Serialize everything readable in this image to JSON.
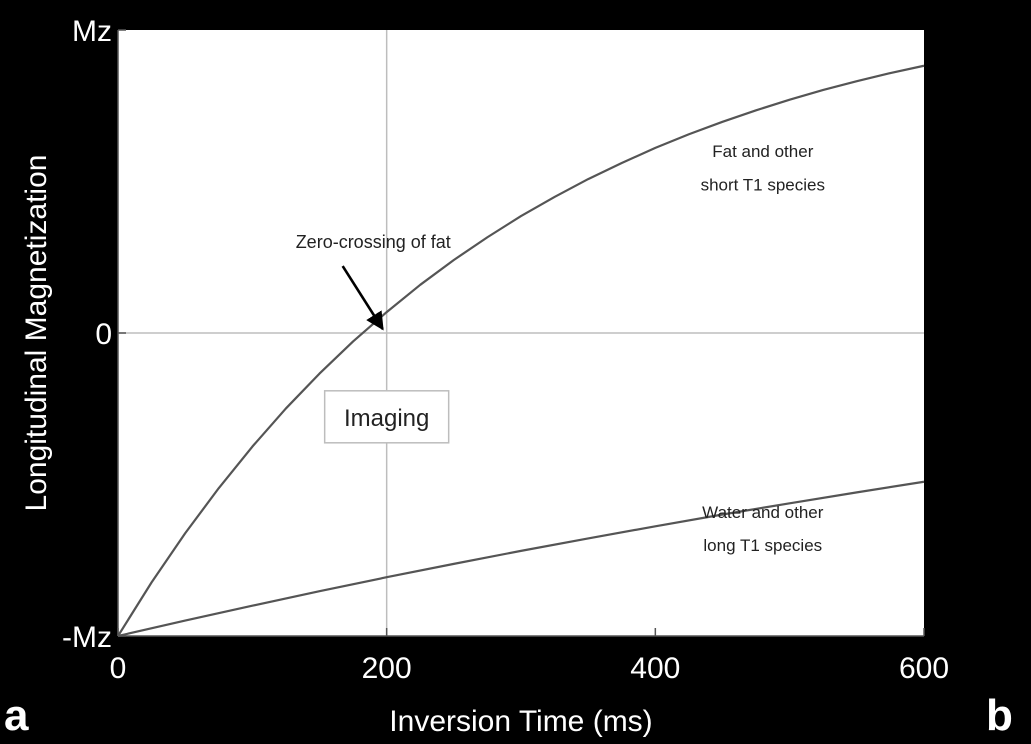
{
  "chart_data": {
    "type": "line",
    "title": "",
    "xlabel": "Inversion Time (ms)",
    "ylabel": "Longitudinal Magnetization",
    "xlim": [
      0,
      600
    ],
    "ylim": [
      -1,
      1
    ],
    "x_ticks": [
      0,
      200,
      400,
      600
    ],
    "x_tick_labels": [
      "0",
      "200",
      "400",
      "600"
    ],
    "y_ticks": [
      -1,
      0,
      1
    ],
    "y_tick_labels": [
      "-Mz",
      "0",
      "Mz"
    ],
    "grid": false,
    "reference_lines": [
      {
        "axis": "x",
        "value": 200
      },
      {
        "axis": "y",
        "value": 0
      }
    ],
    "series": [
      {
        "name": "Fat and other short T1 species",
        "x": [
          0,
          25,
          50,
          75,
          100,
          125,
          150,
          175,
          200,
          225,
          250,
          275,
          300,
          325,
          350,
          375,
          400,
          425,
          450,
          475,
          500,
          525,
          550,
          575,
          600
        ],
        "y": [
          -1.0,
          -0.823,
          -0.661,
          -0.512,
          -0.375,
          -0.249,
          -0.134,
          -0.028,
          0.069,
          0.159,
          0.241,
          0.316,
          0.386,
          0.449,
          0.508,
          0.561,
          0.611,
          0.656,
          0.697,
          0.735,
          0.77,
          0.802,
          0.831,
          0.858,
          0.882
        ]
      },
      {
        "name": "Water and other long T1 species",
        "x": [
          0,
          50,
          100,
          150,
          200,
          250,
          300,
          350,
          400,
          450,
          500,
          550,
          600
        ],
        "y": [
          -1.0,
          -0.949,
          -0.9,
          -0.852,
          -0.806,
          -0.762,
          -0.719,
          -0.678,
          -0.638,
          -0.599,
          -0.562,
          -0.526,
          -0.491
        ]
      }
    ],
    "annotations": [
      {
        "text": "Fat and other",
        "x": 480,
        "y": 0.6
      },
      {
        "text": "short T1 species",
        "x": 480,
        "y": 0.49
      },
      {
        "text": "Water and other",
        "x": 480,
        "y": -0.59
      },
      {
        "text": "long T1 species",
        "x": 480,
        "y": -0.7
      },
      {
        "text": "Zero-crossing of fat",
        "x": 190,
        "y": 0.3,
        "arrow_to": [
          200,
          0
        ]
      },
      {
        "text": "Imaging",
        "x": 200,
        "y": -0.27,
        "boxed": true
      }
    ]
  },
  "panel_labels": {
    "left": "a",
    "right": "b"
  }
}
